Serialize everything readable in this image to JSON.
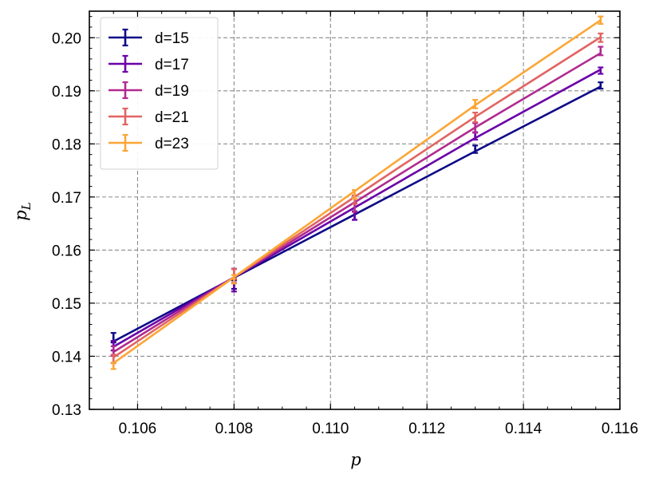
{
  "chart_data": {
    "type": "line",
    "title": "",
    "xlabel": "p",
    "ylabel": "p",
    "ylabel_subscript": "L",
    "xlim": [
      0.105,
      0.116
    ],
    "ylim": [
      0.13,
      0.205
    ],
    "xticks": [
      0.106,
      0.108,
      0.11,
      0.112,
      0.114,
      0.116
    ],
    "xtick_labels": [
      "0.106",
      "0.108",
      "0.110",
      "0.112",
      "0.114",
      "0.116"
    ],
    "yticks": [
      0.13,
      0.14,
      0.15,
      0.16,
      0.17,
      0.18,
      0.19,
      0.2
    ],
    "ytick_labels": [
      "0.13",
      "0.14",
      "0.15",
      "0.16",
      "0.17",
      "0.18",
      "0.19",
      "0.20"
    ],
    "grid": true,
    "grid_style": "dashed",
    "legend_position": "upper-left",
    "x": [
      0.1055,
      0.108,
      0.1105,
      0.113,
      0.1156
    ],
    "series": [
      {
        "name": "d=15",
        "color": "#0d0887",
        "points": [
          0.1435,
          0.1535,
          0.1665,
          0.179,
          0.191
        ],
        "line": [
          0.1428,
          0.1548,
          0.1667,
          0.1786,
          0.1908
        ],
        "err": [
          0.0009,
          0.0008,
          0.0008,
          0.0007,
          0.0006
        ]
      },
      {
        "name": "d=17",
        "color": "#6a00a8",
        "points": [
          0.142,
          0.153,
          0.1665,
          0.1815,
          0.1938
        ],
        "line": [
          0.1418,
          0.1549,
          0.168,
          0.1811,
          0.194
        ],
        "err": [
          0.0009,
          0.0008,
          0.0008,
          0.0007,
          0.0006
        ]
      },
      {
        "name": "d=19",
        "color": "#b12a90",
        "points": [
          0.141,
          0.1555,
          0.168,
          0.183,
          0.1975
        ],
        "line": [
          0.1408,
          0.1549,
          0.169,
          0.1831,
          0.1971
        ],
        "err": [
          0.0009,
          0.001,
          0.0008,
          0.0009,
          0.0008
        ]
      },
      {
        "name": "d=21",
        "color": "#e16462",
        "points": [
          0.1395,
          0.1555,
          0.1695,
          0.185,
          0.2
        ],
        "line": [
          0.1398,
          0.1549,
          0.17,
          0.1851,
          0.2001
        ],
        "err": [
          0.0008,
          0.0009,
          0.0008,
          0.0009,
          0.0008
        ]
      },
      {
        "name": "d=23",
        "color": "#fca636",
        "points": [
          0.1382,
          0.1545,
          0.1705,
          0.1875,
          0.2033
        ],
        "line": [
          0.1387,
          0.1549,
          0.1711,
          0.1873,
          0.2033
        ],
        "err": [
          0.0006,
          0.0008,
          0.0008,
          0.0008,
          0.0007
        ]
      }
    ]
  }
}
